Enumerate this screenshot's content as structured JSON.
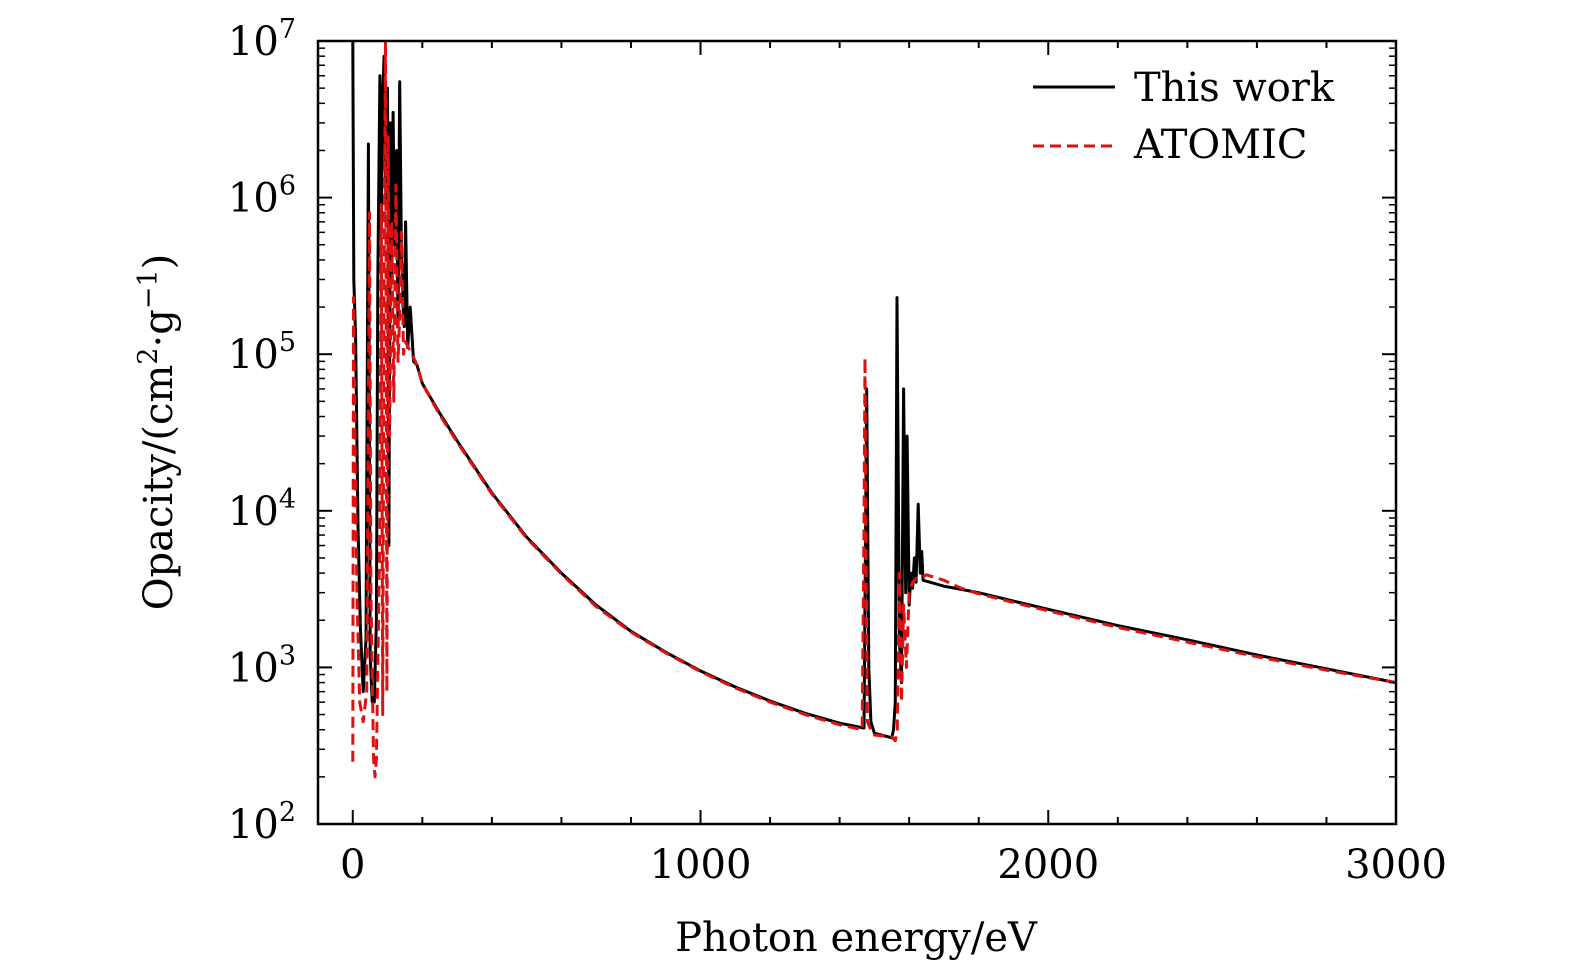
{
  "chart_data": {
    "type": "line",
    "title": "",
    "xlabel": "Photon energy/eV",
    "ylabel": {
      "prefix": "Opacity/(cm",
      "sup1": "2",
      "middle": "·g",
      "sup2": "−1",
      "suffix": ")"
    },
    "xlim": [
      -100,
      3000
    ],
    "ylim_log10": [
      2,
      7
    ],
    "yscale": "log",
    "x_ticks": [
      {
        "value": 0,
        "label": "0"
      },
      {
        "value": 1000,
        "label": "1000"
      },
      {
        "value": 2000,
        "label": "2000"
      },
      {
        "value": 3000,
        "label": "3000"
      }
    ],
    "y_ticks": [
      {
        "exp": 2,
        "base": "10",
        "power": "2"
      },
      {
        "exp": 3,
        "base": "10",
        "power": "3"
      },
      {
        "exp": 4,
        "base": "10",
        "power": "4"
      },
      {
        "exp": 5,
        "base": "10",
        "power": "5"
      },
      {
        "exp": 6,
        "base": "10",
        "power": "6"
      },
      {
        "exp": 7,
        "base": "10",
        "power": "7"
      }
    ],
    "legend_position": "top-right",
    "series": [
      {
        "name": "This work",
        "color": "#000000",
        "style": "solid",
        "points": [
          [
            0,
            10000000
          ],
          [
            3,
            300000
          ],
          [
            8,
            130000
          ],
          [
            15,
            8000
          ],
          [
            22,
            1800
          ],
          [
            30,
            700
          ],
          [
            38,
            1500
          ],
          [
            45,
            2200000
          ],
          [
            50,
            1200
          ],
          [
            56,
            600
          ],
          [
            62,
            600
          ],
          [
            68,
            2000
          ],
          [
            72,
            300000
          ],
          [
            78,
            6000000
          ],
          [
            82,
            600000
          ],
          [
            86,
            4500000
          ],
          [
            90,
            8000000
          ],
          [
            95,
            1000000
          ],
          [
            100,
            5000000
          ],
          [
            104,
            6000
          ],
          [
            108,
            3000000
          ],
          [
            112,
            300000
          ],
          [
            116,
            3500000
          ],
          [
            120,
            500000
          ],
          [
            126,
            2000000
          ],
          [
            130,
            150000
          ],
          [
            135,
            5500000
          ],
          [
            140,
            400000
          ],
          [
            148,
            150000
          ],
          [
            152,
            700000
          ],
          [
            158,
            110000
          ],
          [
            165,
            200000
          ],
          [
            175,
            90000
          ],
          [
            185,
            85000
          ],
          [
            200,
            65000
          ],
          [
            250,
            42000
          ],
          [
            300,
            28000
          ],
          [
            400,
            13000
          ],
          [
            500,
            6800
          ],
          [
            600,
            4000
          ],
          [
            700,
            2500
          ],
          [
            800,
            1700
          ],
          [
            900,
            1250
          ],
          [
            1000,
            950
          ],
          [
            1100,
            750
          ],
          [
            1200,
            610
          ],
          [
            1300,
            510
          ],
          [
            1400,
            440
          ],
          [
            1470,
            410
          ],
          [
            1478,
            60000
          ],
          [
            1484,
            1000
          ],
          [
            1490,
            450
          ],
          [
            1500,
            380
          ],
          [
            1550,
            355
          ],
          [
            1555,
            400
          ],
          [
            1560,
            600
          ],
          [
            1565,
            230000
          ],
          [
            1572,
            1500
          ],
          [
            1578,
            800
          ],
          [
            1584,
            60000
          ],
          [
            1590,
            3000
          ],
          [
            1594,
            30000
          ],
          [
            1600,
            2500
          ],
          [
            1605,
            4000
          ],
          [
            1610,
            3200
          ],
          [
            1615,
            5000
          ],
          [
            1620,
            3500
          ],
          [
            1626,
            11000
          ],
          [
            1632,
            4000
          ],
          [
            1636,
            5500
          ],
          [
            1640,
            3600
          ],
          [
            1660,
            3500
          ],
          [
            1700,
            3300
          ],
          [
            1750,
            3150
          ],
          [
            1800,
            3000
          ],
          [
            1900,
            2650
          ],
          [
            2000,
            2350
          ],
          [
            2200,
            1850
          ],
          [
            2400,
            1500
          ],
          [
            2600,
            1200
          ],
          [
            2800,
            980
          ],
          [
            3000,
            800
          ]
        ]
      },
      {
        "name": "ATOMIC",
        "color": "#dd1111",
        "style": "dashed",
        "points": [
          [
            0,
            250
          ],
          [
            2,
            230000
          ],
          [
            6,
            30000
          ],
          [
            12,
            3000
          ],
          [
            20,
            600
          ],
          [
            30,
            450
          ],
          [
            40,
            700
          ],
          [
            48,
            800000
          ],
          [
            52,
            3000
          ],
          [
            60,
            260
          ],
          [
            64,
            200
          ],
          [
            68,
            260
          ],
          [
            72,
            1000
          ],
          [
            78,
            8000
          ],
          [
            82,
            900000
          ],
          [
            86,
            500
          ],
          [
            90,
            300000
          ],
          [
            94,
            10000000
          ],
          [
            98,
            700
          ],
          [
            102,
            2500000
          ],
          [
            106,
            30000
          ],
          [
            112,
            700000
          ],
          [
            118,
            50000
          ],
          [
            124,
            1200000
          ],
          [
            130,
            90000
          ],
          [
            136,
            200000
          ],
          [
            140,
            600000
          ],
          [
            146,
            100000
          ],
          [
            152,
            120000
          ],
          [
            160,
            110000
          ],
          [
            170,
            100000
          ],
          [
            185,
            85000
          ],
          [
            200,
            65000
          ],
          [
            250,
            41000
          ],
          [
            300,
            27500
          ],
          [
            400,
            12800
          ],
          [
            500,
            6700
          ],
          [
            600,
            3950
          ],
          [
            700,
            2450
          ],
          [
            800,
            1680
          ],
          [
            900,
            1240
          ],
          [
            1000,
            940
          ],
          [
            1100,
            740
          ],
          [
            1200,
            600
          ],
          [
            1300,
            500
          ],
          [
            1400,
            430
          ],
          [
            1465,
            400
          ],
          [
            1470,
            8000
          ],
          [
            1473,
            95000
          ],
          [
            1476,
            5000
          ],
          [
            1480,
            450
          ],
          [
            1490,
            400
          ],
          [
            1500,
            370
          ],
          [
            1550,
            360
          ],
          [
            1560,
            340
          ],
          [
            1566,
            400
          ],
          [
            1572,
            4000
          ],
          [
            1578,
            600
          ],
          [
            1584,
            2500
          ],
          [
            1592,
            1000
          ],
          [
            1600,
            3000
          ],
          [
            1610,
            3500
          ],
          [
            1620,
            3700
          ],
          [
            1630,
            3700
          ],
          [
            1650,
            3900
          ],
          [
            1700,
            3600
          ],
          [
            1750,
            3200
          ],
          [
            1800,
            2950
          ],
          [
            1900,
            2600
          ],
          [
            2000,
            2300
          ],
          [
            2200,
            1800
          ],
          [
            2400,
            1450
          ],
          [
            2600,
            1170
          ],
          [
            2800,
            960
          ],
          [
            3000,
            800
          ]
        ]
      }
    ]
  }
}
